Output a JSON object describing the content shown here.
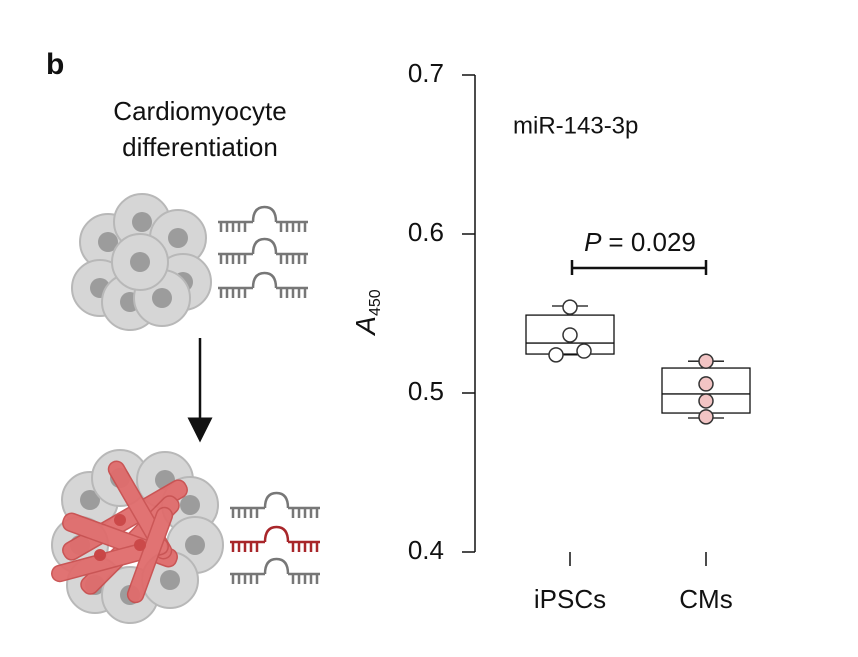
{
  "panel_label": "b",
  "diagram": {
    "caption_lines": [
      "Cardiomyocyte",
      "differentiation"
    ]
  },
  "chart_data": {
    "type": "box",
    "title": "miR-143-3p",
    "ylabel": {
      "main": "A",
      "sub": "450"
    },
    "categories": [
      "iPSCs",
      "CMs"
    ],
    "ylim": [
      0.4,
      0.7
    ],
    "yticks": [
      0.4,
      0.5,
      0.6,
      0.7
    ],
    "annotation": {
      "symbol": "P",
      "text": "= 0.029"
    },
    "boxes": [
      {
        "whisker_low": 0.524,
        "q1": 0.5245,
        "median": 0.5314,
        "q3": 0.549,
        "whisker_high": 0.5547,
        "points": [
          0.554,
          0.5365,
          0.5264,
          0.524
        ],
        "point_color": "#ffffff"
      },
      {
        "whisker_low": 0.4843,
        "q1": 0.4874,
        "median": 0.4994,
        "q3": 0.5157,
        "whisker_high": 0.52,
        "points": [
          0.52,
          0.5057,
          0.495,
          0.485
        ],
        "point_color": "#f2c4c4"
      }
    ]
  }
}
